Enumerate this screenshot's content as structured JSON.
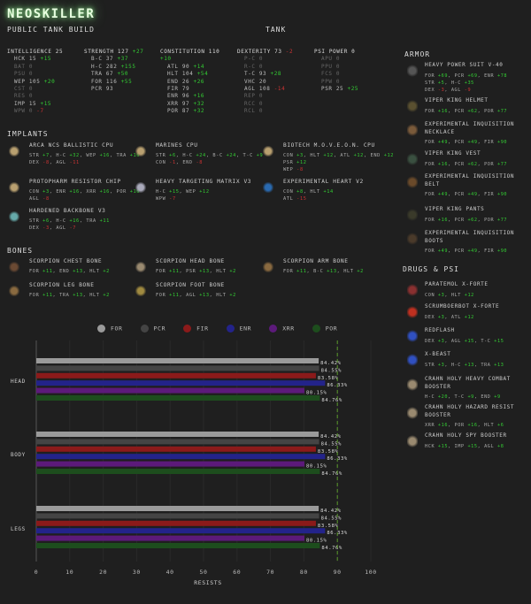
{
  "header": {
    "title": "NEOSKILLER",
    "subtitle": "PUBLIC TANK BUILD",
    "class": "TANK"
  },
  "stats": [
    {
      "title": "INTELLIGENCE 25",
      "bonus": "",
      "rows": [
        [
          "HCK 15",
          "+15",
          0
        ],
        [
          "BAT 0",
          "",
          1
        ],
        [
          "PSU 0",
          "",
          1
        ],
        [
          "WEP 105",
          "+20",
          0
        ],
        [
          "CST 0",
          "",
          1
        ],
        [
          "RES 0",
          "",
          1
        ],
        [
          "IMP 15",
          "+15",
          0
        ],
        [
          "WPW 0",
          "-7",
          1
        ]
      ]
    },
    {
      "title": "STRENGTH 127",
      "bonus": "+27",
      "rows": [
        [
          "B-C 37",
          "+37",
          0
        ],
        [
          "H-C 282",
          "+155",
          0
        ],
        [
          "TRA 67",
          "+50",
          0
        ],
        [
          "FOR 116",
          "+55",
          0
        ],
        [
          "PCR 93",
          "",
          0
        ]
      ]
    },
    {
      "title": "CONSTITUTION 110",
      "bonus": "+10",
      "rows": [
        [
          "ATL 90",
          "+14",
          0
        ],
        [
          "HLT 104",
          "+54",
          0
        ],
        [
          "END 26",
          "+26",
          0
        ],
        [
          "FIR 79",
          "",
          0
        ],
        [
          "ENR 96",
          "+16",
          0
        ],
        [
          "XRR 97",
          "+32",
          0
        ],
        [
          "POR 87",
          "+32",
          0
        ]
      ]
    },
    {
      "title": "DEXTERITY 73",
      "bonus": "-2",
      "rows": [
        [
          "P-C 0",
          "",
          1
        ],
        [
          "R-C 0",
          "",
          1
        ],
        [
          "T-C 93",
          "+28",
          0
        ],
        [
          "VHC 20",
          "",
          0
        ],
        [
          "AGL 108",
          "-14",
          0
        ],
        [
          "REP 0",
          "",
          1
        ],
        [
          "RCC 0",
          "",
          1
        ],
        [
          "RCL 0",
          "",
          1
        ]
      ]
    },
    {
      "title": "PSI POWER 0",
      "bonus": "",
      "rows": [
        [
          "APU 0",
          "",
          1
        ],
        [
          "PPU 0",
          "",
          1
        ],
        [
          "FCS 0",
          "",
          1
        ],
        [
          "PPW 0",
          "",
          1
        ],
        [
          "PSR 25",
          "+25",
          0
        ]
      ]
    }
  ],
  "sections": {
    "implants": "IMPLANTS",
    "bones": "BONES",
    "armor": "ARMOR",
    "drugs": "DRUGS & PSI"
  },
  "implants": [
    {
      "name": "ARCA NCS BALLISTIC CPU",
      "icon": "cpu-chip-icon",
      "color": "#b9a070",
      "lines": [
        [
          [
            "STR",
            "+7"
          ],
          [
            "H-C",
            "+32"
          ],
          [
            "WEP",
            "+16"
          ],
          [
            "TRA",
            "+16"
          ]
        ],
        [
          [
            "DEX",
            "-8"
          ],
          [
            "AGL",
            "-11"
          ]
        ]
      ]
    },
    {
      "name": "MARINES CPU",
      "icon": "cpu-chip-icon",
      "color": "#b9a070",
      "lines": [
        [
          [
            "STR",
            "+6"
          ],
          [
            "H-C",
            "+24"
          ],
          [
            "B-C",
            "+24"
          ],
          [
            "T-C",
            "+9"
          ]
        ],
        [
          [
            "CON",
            "-1"
          ],
          [
            "END",
            "-8"
          ]
        ]
      ]
    },
    {
      "name": "BIOTECH M.O.V.E.O.N. CPU",
      "icon": "cpu-chip-icon",
      "color": "#b9a070",
      "lines": [
        [
          [
            "CON",
            "+3"
          ],
          [
            "HLT",
            "+12"
          ],
          [
            "ATL",
            "+12"
          ],
          [
            "END",
            "+12"
          ]
        ],
        [
          [
            "PSR",
            "+12"
          ]
        ],
        [
          [
            "WEP",
            "-8"
          ]
        ]
      ]
    },
    {
      "name": "PROTOPHARM RESISTOR CHIP",
      "icon": "chip-icon",
      "color": "#b9a070",
      "lines": [
        [
          [
            "CON",
            "+3"
          ],
          [
            "ENR",
            "+16"
          ],
          [
            "XRR",
            "+16"
          ],
          [
            "POR",
            "+16"
          ]
        ],
        [
          [
            "AGL",
            "-8"
          ]
        ]
      ]
    },
    {
      "name": "HEAVY TARGETING MATRIX V3",
      "icon": "targeting-matrix-icon",
      "color": "#aab",
      "lines": [
        [
          [
            "H-C",
            "+15"
          ],
          [
            "WEP",
            "+12"
          ]
        ],
        [
          [
            "WPW",
            "-7"
          ]
        ]
      ]
    },
    {
      "name": "EXPERIMENTAL HEART V2",
      "icon": "heart-icon",
      "color": "#2a6ab0",
      "lines": [
        [
          [
            "CON",
            "+8"
          ],
          [
            "HLT",
            "+14"
          ]
        ],
        [
          [
            "ATL",
            "-15"
          ]
        ]
      ]
    },
    {
      "name": "HARDENED BACKBONE V3",
      "icon": "backbone-icon",
      "color": "#6aa",
      "lines": [
        [
          [
            "STR",
            "+6"
          ],
          [
            "H-C",
            "+16"
          ],
          [
            "TRA",
            "+11"
          ]
        ],
        [
          [
            "DEX",
            "-3"
          ],
          [
            "AGL",
            "-7"
          ]
        ]
      ]
    }
  ],
  "bones": [
    {
      "name": "SCORPION CHEST BONE",
      "icon": "chest-bone-icon",
      "color": "#6b4a33",
      "lines": [
        [
          [
            "FOR",
            "+11"
          ],
          [
            "END",
            "+13"
          ],
          [
            "HLT",
            "+2"
          ]
        ]
      ]
    },
    {
      "name": "SCORPION HEAD BONE",
      "icon": "head-bone-icon",
      "color": "#9a8a70",
      "lines": [
        [
          [
            "FOR",
            "+11"
          ],
          [
            "PSR",
            "+13"
          ],
          [
            "HLT",
            "+2"
          ]
        ]
      ]
    },
    {
      "name": "SCORPION ARM BONE",
      "icon": "arm-bone-icon",
      "color": "#8a6a40",
      "lines": [
        [
          [
            "FOR",
            "+11"
          ],
          [
            "B-C",
            "+13"
          ],
          [
            "HLT",
            "+2"
          ]
        ]
      ]
    },
    {
      "name": "SCORPION LEG BONE",
      "icon": "leg-bone-icon",
      "color": "#8a6a40",
      "lines": [
        [
          [
            "FOR",
            "+11"
          ],
          [
            "TRA",
            "+13"
          ],
          [
            "HLT",
            "+2"
          ]
        ]
      ]
    },
    {
      "name": "SCORPION FOOT BONE",
      "icon": "foot-bone-icon",
      "color": "#a08a40",
      "lines": [
        [
          [
            "FOR",
            "+11"
          ],
          [
            "AGL",
            "+13"
          ],
          [
            "HLT",
            "+2"
          ]
        ]
      ]
    }
  ],
  "armor": [
    {
      "name": "HEAVY POWER SUIT V-40",
      "icon": "power-suit-icon",
      "color": "#555",
      "lines": [
        [
          [
            "FOR",
            "+69"
          ],
          [
            "PCR",
            "+69"
          ],
          [
            "ENR",
            "+78"
          ]
        ],
        [
          [
            "STR",
            "+5"
          ],
          [
            "H-C",
            "+35"
          ]
        ],
        [
          [
            "DEX",
            "-3"
          ],
          [
            "AGL",
            "-9"
          ]
        ]
      ]
    },
    {
      "name": "VIPER KING HELMET",
      "icon": "helmet-icon",
      "color": "#5a5030",
      "lines": [
        [
          [
            "FOR",
            "+16"
          ],
          [
            "PCR",
            "+62"
          ],
          [
            "POR",
            "+77"
          ]
        ]
      ]
    },
    {
      "name": "EXPERIMENTAL INQUISITION NECKLACE",
      "icon": "necklace-icon",
      "color": "#7a5a3a",
      "lines": [
        [
          [
            "FOR",
            "+49"
          ],
          [
            "PCR",
            "+49"
          ],
          [
            "FIR",
            "+90"
          ]
        ]
      ]
    },
    {
      "name": "VIPER KING VEST",
      "icon": "vest-icon",
      "color": "#3a5040",
      "lines": [
        [
          [
            "FOR",
            "+16"
          ],
          [
            "PCR",
            "+62"
          ],
          [
            "POR",
            "+77"
          ]
        ]
      ]
    },
    {
      "name": "EXPERIMENTAL INQUISITION BELT",
      "icon": "belt-icon",
      "color": "#6a4a2a",
      "lines": [
        [
          [
            "FOR",
            "+49"
          ],
          [
            "PCR",
            "+49"
          ],
          [
            "FIR",
            "+90"
          ]
        ]
      ]
    },
    {
      "name": "VIPER KING PANTS",
      "icon": "pants-icon",
      "color": "#3a3a2a",
      "lines": [
        [
          [
            "FOR",
            "+16"
          ],
          [
            "PCR",
            "+62"
          ],
          [
            "POR",
            "+77"
          ]
        ]
      ]
    },
    {
      "name": "EXPERIMENTAL INQUISITION BOOTS",
      "icon": "boots-icon",
      "color": "#4a3a2a",
      "lines": [
        [
          [
            "FOR",
            "+49"
          ],
          [
            "PCR",
            "+49"
          ],
          [
            "FIR",
            "+90"
          ]
        ]
      ]
    }
  ],
  "drugs": [
    {
      "name": "PARATEMOL X-FORTE",
      "icon": "drug-vial-icon",
      "color": "#8a3030",
      "lines": [
        [
          [
            "CON",
            "+3"
          ],
          [
            "HLT",
            "+12"
          ]
        ]
      ]
    },
    {
      "name": "SCRUMBOERBOT X-FORTE",
      "icon": "drug-vial-icon",
      "color": "#c03020",
      "lines": [
        [
          [
            "DEX",
            "+3"
          ],
          [
            "ATL",
            "+12"
          ]
        ]
      ]
    },
    {
      "name": "REDFLASH",
      "icon": "drug-vial-icon",
      "color": "#3050c0",
      "lines": [
        [
          [
            "DEX",
            "+3"
          ],
          [
            "AGL",
            "+15"
          ],
          [
            "T-C",
            "+15"
          ]
        ]
      ]
    },
    {
      "name": "X-BEAST",
      "icon": "drug-vial-icon",
      "color": "#3050c0",
      "lines": [
        [
          [
            "STR",
            "+3"
          ],
          [
            "H-C",
            "+13"
          ],
          [
            "TRA",
            "+13"
          ]
        ]
      ]
    },
    {
      "name": "CRAHN HOLY HEAVY COMBAT BOOSTER",
      "icon": "psi-booster-icon",
      "color": "#9a8a70",
      "lines": [
        [
          [
            "H-C",
            "+20"
          ],
          [
            "T-C",
            "+9"
          ],
          [
            "END",
            "+9"
          ]
        ]
      ]
    },
    {
      "name": "CRAHN HOLY HAZARD RESIST BOOSTER",
      "icon": "psi-booster-icon",
      "color": "#9a8a70",
      "lines": [
        [
          [
            "XRR",
            "+16"
          ],
          [
            "POR",
            "+16"
          ],
          [
            "HLT",
            "+6"
          ]
        ]
      ]
    },
    {
      "name": "CRAHN HOLY SPY BOOSTER",
      "icon": "psi-booster-icon",
      "color": "#9a8a70",
      "lines": [
        [
          [
            "HCK",
            "+15"
          ],
          [
            "IMP",
            "+15"
          ],
          [
            "AGL",
            "+8"
          ]
        ]
      ]
    }
  ],
  "chart_data": {
    "type": "bar",
    "orientation": "horizontal",
    "categories": [
      "HEAD",
      "BODY",
      "LEGS"
    ],
    "series": [
      {
        "name": "FOR",
        "color": "#9a9a9a",
        "values": [
          84.42,
          84.42,
          84.42
        ]
      },
      {
        "name": "PCR",
        "color": "#444444",
        "values": [
          84.55,
          84.55,
          84.55
        ]
      },
      {
        "name": "FIR",
        "color": "#8b1a1a",
        "values": [
          83.58,
          83.58,
          83.58
        ]
      },
      {
        "name": "ENR",
        "color": "#23238a",
        "values": [
          86.33,
          86.33,
          86.33
        ]
      },
      {
        "name": "XRR",
        "color": "#5c1a7a",
        "values": [
          80.15,
          80.15,
          80.15
        ]
      },
      {
        "name": "POR",
        "color": "#1d4d1d",
        "values": [
          84.76,
          84.76,
          84.76
        ]
      }
    ],
    "labels": [
      "84.42%",
      "84.55%",
      "83.58%",
      "86.33%",
      "80.15%",
      "84.76%"
    ],
    "xlabel": "RESISTS",
    "xlim": [
      0,
      100
    ],
    "xticks": [
      "0",
      "10",
      "20",
      "30",
      "40",
      "50",
      "60",
      "70",
      "80",
      "90",
      "100"
    ],
    "reference_line": {
      "value": 90,
      "color": "#5a9a2a",
      "style": "dashed"
    },
    "legend": "top",
    "grid": true
  }
}
